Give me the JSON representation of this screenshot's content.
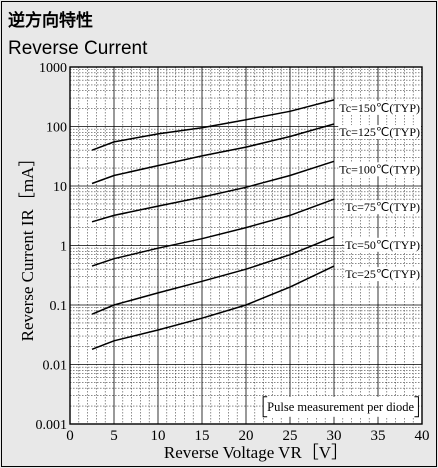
{
  "title_ja": "逆方向特性",
  "title_en": "Reverse Current",
  "chart_data": {
    "type": "line",
    "xlabel": "Reverse Voltage  VR［V］",
    "ylabel": "Reverse Current IR［mA］",
    "xlim": [
      0,
      40
    ],
    "ylim": [
      0.001,
      1000
    ],
    "yscale": "log",
    "grid": true,
    "x_ticks": [
      "0",
      "5",
      "10",
      "15",
      "20",
      "25",
      "30",
      "35",
      "40"
    ],
    "y_ticks": [
      "0.001",
      "0.01",
      "0.1",
      "1",
      "10",
      "100",
      "1000"
    ],
    "annotation": "Pulse measurement per diode",
    "series": [
      {
        "name": "Tc=150℃(TYP)",
        "x": [
          2.5,
          5,
          10,
          15,
          20,
          25,
          30
        ],
        "y": [
          40,
          55,
          75,
          95,
          130,
          180,
          280
        ]
      },
      {
        "name": "Tc=125℃(TYP)",
        "x": [
          2.5,
          5,
          10,
          15,
          20,
          25,
          30
        ],
        "y": [
          11,
          15,
          22,
          32,
          45,
          68,
          110
        ]
      },
      {
        "name": "Tc=100℃(TYP)",
        "x": [
          2.5,
          5,
          10,
          15,
          20,
          25,
          30
        ],
        "y": [
          2.5,
          3.2,
          4.6,
          6.5,
          9.5,
          15,
          26
        ]
      },
      {
        "name": "Tc=75℃(TYP)",
        "x": [
          2.5,
          5,
          10,
          15,
          20,
          25,
          30
        ],
        "y": [
          0.45,
          0.6,
          0.9,
          1.3,
          2.0,
          3.2,
          6.0
        ]
      },
      {
        "name": "Tc=50℃(TYP)",
        "x": [
          2.5,
          5,
          10,
          15,
          20,
          25,
          30
        ],
        "y": [
          0.07,
          0.1,
          0.16,
          0.25,
          0.4,
          0.7,
          1.4
        ]
      },
      {
        "name": "Tc=25℃(TYP)",
        "x": [
          2.5,
          5,
          10,
          15,
          20,
          25,
          30
        ],
        "y": [
          0.018,
          0.025,
          0.038,
          0.06,
          0.1,
          0.2,
          0.45
        ]
      }
    ]
  }
}
